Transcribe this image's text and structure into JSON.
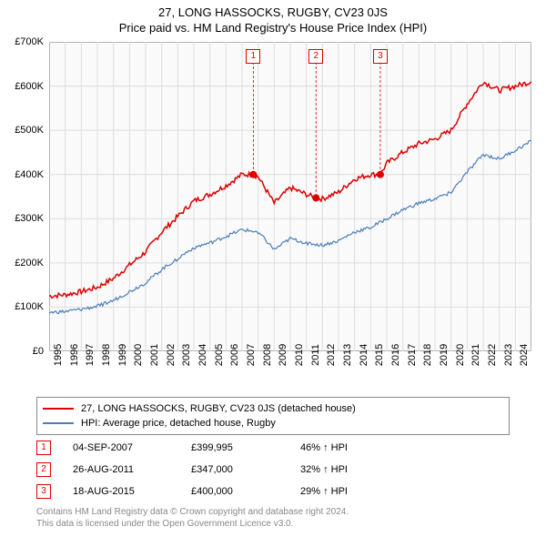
{
  "title": "27, LONG HASSOCKS, RUGBY, CV23 0JS",
  "subtitle": "Price paid vs. HM Land Registry's House Price Index (HPI)",
  "chart": {
    "type": "line",
    "background_color": "#fafafa",
    "grid_color": "#dddddd",
    "xlim": [
      1995,
      2025
    ],
    "ylim": [
      0,
      700000
    ],
    "ytick_step": 100000,
    "ytick_labels": [
      "£0",
      "£100K",
      "£200K",
      "£300K",
      "£400K",
      "£500K",
      "£600K",
      "£700K"
    ],
    "xtick_step": 1,
    "xtick_labels": [
      "1995",
      "1996",
      "1997",
      "1998",
      "1999",
      "2000",
      "2001",
      "2002",
      "2003",
      "2004",
      "2005",
      "2006",
      "2007",
      "2008",
      "2009",
      "2010",
      "2011",
      "2012",
      "2013",
      "2014",
      "2015",
      "2016",
      "2017",
      "2018",
      "2019",
      "2020",
      "2021",
      "2022",
      "2023",
      "2024"
    ],
    "series": [
      {
        "name": "27, LONG HASSOCKS, RUGBY, CV23 0JS (detached house)",
        "color": "#dd0000",
        "line_width": 1.5,
        "x": [
          1995,
          1996,
          1997,
          1998,
          1999,
          2000,
          2001,
          2002,
          2003,
          2004,
          2005,
          2006,
          2007,
          2007.7,
          2008,
          2009,
          2010,
          2011,
          2011.6,
          2012,
          2013,
          2014,
          2015,
          2015.6,
          2016,
          2017,
          2018,
          2019,
          2020,
          2021,
          2022,
          2023,
          2024,
          2025
        ],
        "y": [
          125000,
          128000,
          135000,
          145000,
          165000,
          195000,
          225000,
          270000,
          305000,
          340000,
          355000,
          375000,
          400000,
          400000,
          395000,
          335000,
          370000,
          355000,
          347000,
          345000,
          360000,
          390000,
          400000,
          400000,
          425000,
          450000,
          470000,
          480000,
          500000,
          560000,
          610000,
          590000,
          600000,
          610000
        ]
      },
      {
        "name": "HPI: Average price, detached house, Rugby",
        "color": "#4a7ebb",
        "line_width": 1.2,
        "x": [
          1995,
          1996,
          1997,
          1998,
          1999,
          2000,
          2001,
          2002,
          2003,
          2004,
          2005,
          2006,
          2007,
          2008,
          2009,
          2010,
          2011,
          2012,
          2013,
          2014,
          2015,
          2016,
          2017,
          2018,
          2019,
          2020,
          2021,
          2022,
          2023,
          2024,
          2025
        ],
        "y": [
          88000,
          90000,
          95000,
          102000,
          115000,
          135000,
          155000,
          185000,
          210000,
          235000,
          245000,
          260000,
          275000,
          270000,
          230000,
          255000,
          245000,
          240000,
          250000,
          270000,
          280000,
          300000,
          320000,
          335000,
          345000,
          360000,
          405000,
          445000,
          435000,
          455000,
          475000
        ]
      }
    ],
    "sale_markers": [
      {
        "label": "1",
        "x": 2007.7,
        "y": 400000
      },
      {
        "label": "2",
        "x": 2011.6,
        "y": 347000
      },
      {
        "label": "3",
        "x": 2015.6,
        "y": 400000
      }
    ],
    "sale_dot_color": "#dd0000",
    "sale_dot_radius": 4
  },
  "legend": {
    "rows": [
      {
        "color": "#dd0000",
        "label": "27, LONG HASSOCKS, RUGBY, CV23 0JS (detached house)"
      },
      {
        "color": "#4a7ebb",
        "label": "HPI: Average price, detached house, Rugby"
      }
    ]
  },
  "sales": [
    {
      "num": "1",
      "date": "04-SEP-2007",
      "price": "£399,995",
      "pct": "46% ↑ HPI"
    },
    {
      "num": "2",
      "date": "26-AUG-2011",
      "price": "£347,000",
      "pct": "32% ↑ HPI"
    },
    {
      "num": "3",
      "date": "18-AUG-2015",
      "price": "£400,000",
      "pct": "29% ↑ HPI"
    }
  ],
  "footer": {
    "line1": "Contains HM Land Registry data © Crown copyright and database right 2024.",
    "line2": "This data is licensed under the Open Government Licence v3.0."
  }
}
